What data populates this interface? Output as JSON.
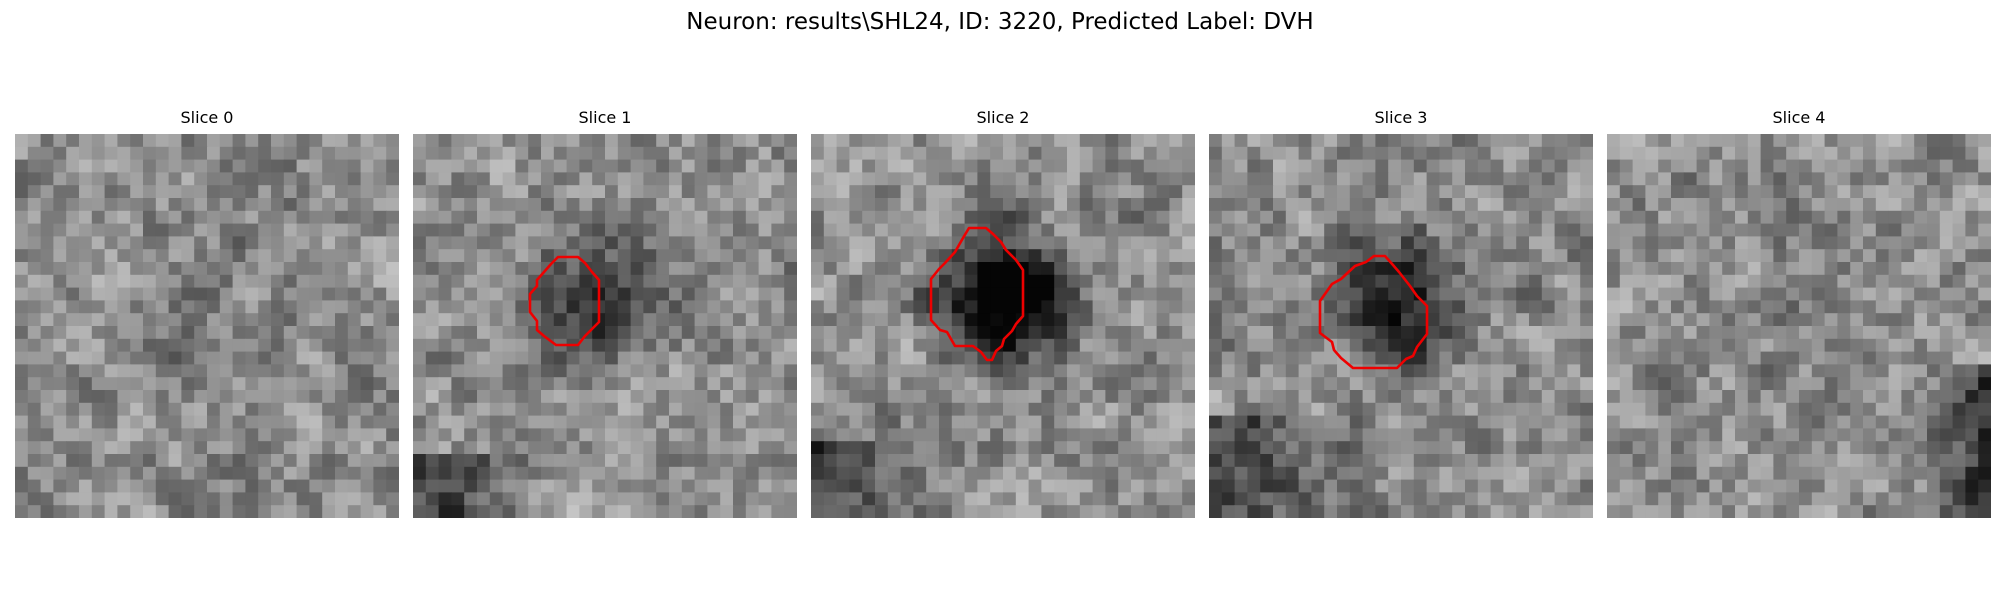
{
  "figure": {
    "title": "Neuron: results\\SHL24, ID: 3220, Predicted Label: DVH"
  },
  "panels": [
    {
      "title": "Slice 0",
      "seed": 11,
      "blob": 0.1,
      "contour": false
    },
    {
      "title": "Slice 1",
      "seed": 23,
      "blob": 0.55,
      "contour": true
    },
    {
      "title": "Slice 2",
      "seed": 37,
      "blob": 0.95,
      "contour": true
    },
    {
      "title": "Slice 3",
      "seed": 49,
      "blob": 0.7,
      "contour": true
    },
    {
      "title": "Slice 4",
      "seed": 61,
      "blob": 0.05,
      "contour": false
    }
  ],
  "colors": {
    "contour": "#ee0000",
    "background": "#ffffff"
  }
}
